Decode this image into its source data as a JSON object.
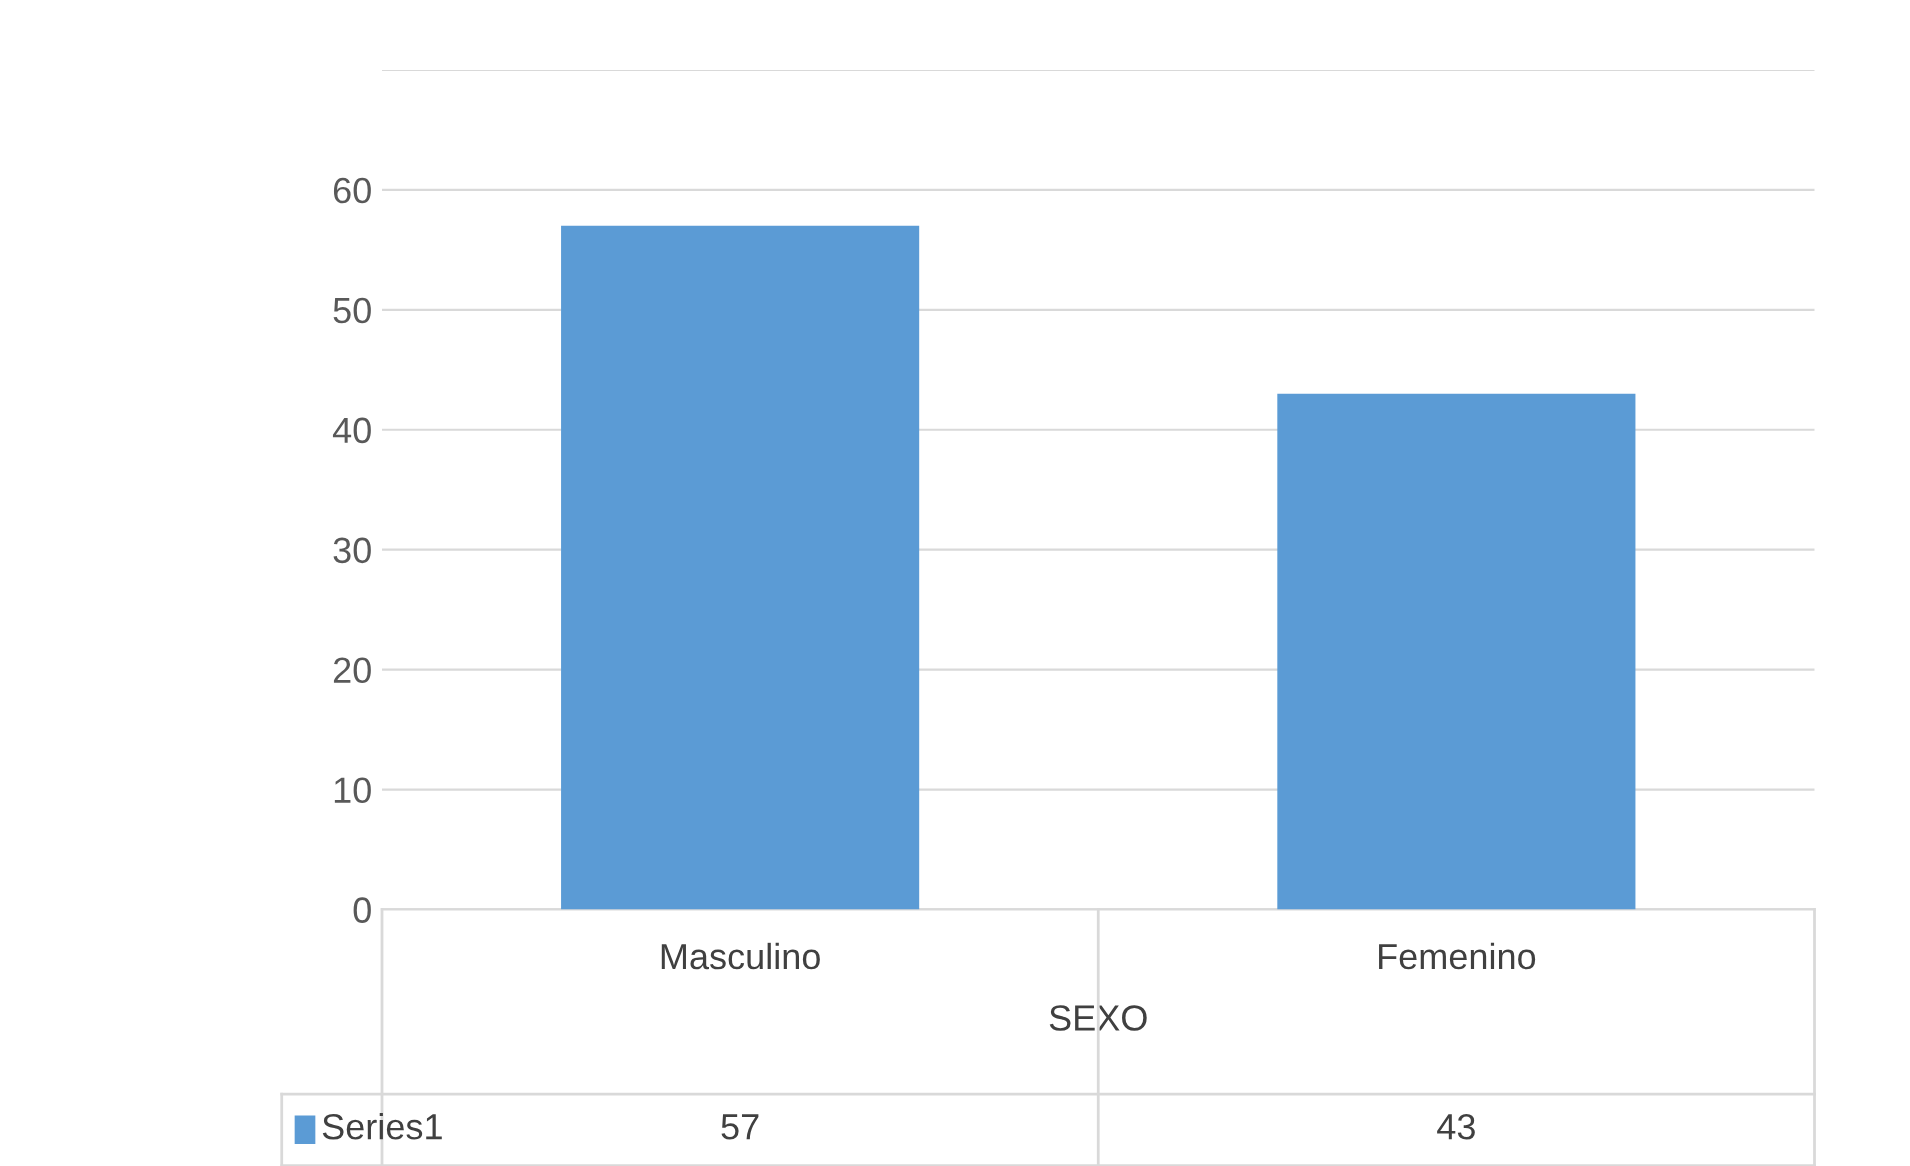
{
  "chart_data": {
    "type": "bar",
    "categories": [
      "Masculino",
      "Femenino"
    ],
    "xlabel": "SEXO",
    "series": [
      {
        "name": "Series1",
        "color": "#5b9bd5",
        "values": [
          57,
          43
        ]
      }
    ],
    "ylim": [
      0,
      70
    ],
    "yticks": [
      0,
      10,
      20,
      30,
      40,
      50,
      60,
      {
        "value": 70,
        "label": null
      }
    ],
    "grid": "y",
    "data_labels": true
  }
}
